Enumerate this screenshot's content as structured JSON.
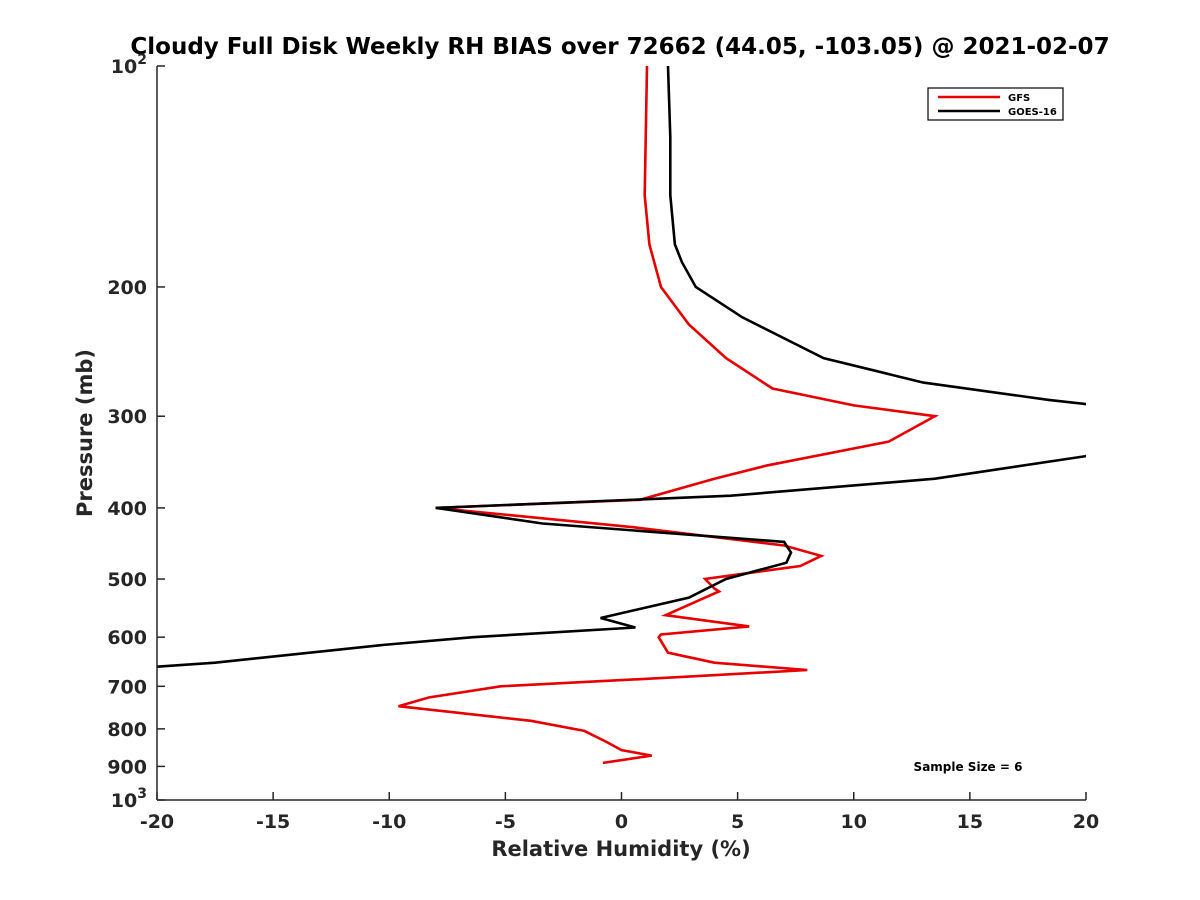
{
  "chart_data": {
    "type": "line",
    "title": "Cloudy Full Disk Weekly RH BIAS over 72662 (44.05, -103.05) @ 2021-02-07",
    "xlabel": "Relative Humidity (%)",
    "ylabel": "Pressure (mb)",
    "xlim": [
      -20,
      20
    ],
    "ylim": [
      100,
      1000
    ],
    "y_scale": "log",
    "y_reversed": true,
    "grid": false,
    "legend_position": "top-right",
    "x_ticks": [
      "-20",
      "-15",
      "-10",
      "-5",
      "0",
      "5",
      "10",
      "15",
      "20"
    ],
    "y_ticks": [
      {
        "value": 100,
        "base": "10",
        "exp": "2"
      },
      {
        "value": 200,
        "label": "200"
      },
      {
        "value": 300,
        "label": "300"
      },
      {
        "value": 400,
        "label": "400"
      },
      {
        "value": 500,
        "label": "500"
      },
      {
        "value": 600,
        "label": "600"
      },
      {
        "value": 700,
        "label": "700"
      },
      {
        "value": 800,
        "label": "800"
      },
      {
        "value": 900,
        "label": "900"
      },
      {
        "value": 1000,
        "base": "10",
        "exp": "3"
      }
    ],
    "series": [
      {
        "name": "GFS",
        "color": "#e60000",
        "points": [
          [
            1.1,
            100
          ],
          [
            1.0,
            150
          ],
          [
            1.2,
            175
          ],
          [
            1.7,
            200
          ],
          [
            2.9,
            225
          ],
          [
            4.5,
            250
          ],
          [
            6.5,
            275
          ],
          [
            10.0,
            290
          ],
          [
            13.5,
            300
          ],
          [
            11.5,
            325
          ],
          [
            6.3,
            350
          ],
          [
            4.0,
            365
          ],
          [
            0.8,
            390
          ],
          [
            -8.0,
            400
          ],
          [
            0.5,
            425
          ],
          [
            7.0,
            450
          ],
          [
            8.6,
            465
          ],
          [
            7.7,
            480
          ],
          [
            3.6,
            500
          ],
          [
            4.0,
            515
          ],
          [
            4.2,
            520
          ],
          [
            3.6,
            530
          ],
          [
            1.9,
            560
          ],
          [
            5.5,
            580
          ],
          [
            1.7,
            595
          ],
          [
            1.6,
            600
          ],
          [
            2.0,
            630
          ],
          [
            4.0,
            650
          ],
          [
            8.0,
            665
          ],
          [
            2.5,
            680
          ],
          [
            -5.2,
            700
          ],
          [
            -8.3,
            725
          ],
          [
            -9.6,
            745
          ],
          [
            -3.9,
            780
          ],
          [
            -1.6,
            805
          ],
          [
            -0.6,
            835
          ],
          [
            0.0,
            855
          ],
          [
            1.3,
            870
          ],
          [
            -0.8,
            890
          ]
        ]
      },
      {
        "name": "GOES-16",
        "color": "#000000",
        "points": [
          [
            2.0,
            100
          ],
          [
            2.1,
            125
          ],
          [
            2.1,
            150
          ],
          [
            2.3,
            175
          ],
          [
            2.6,
            185
          ],
          [
            3.2,
            200
          ],
          [
            5.2,
            220
          ],
          [
            8.7,
            250
          ],
          [
            13.0,
            270
          ],
          [
            18.4,
            285
          ],
          [
            20.5,
            290
          ],
          [
            20.5,
            330
          ],
          [
            20.0,
            340
          ],
          [
            13.5,
            365
          ],
          [
            4.7,
            385
          ],
          [
            -8.0,
            400
          ],
          [
            -3.4,
            420
          ],
          [
            7.0,
            445
          ],
          [
            7.3,
            460
          ],
          [
            7.1,
            475
          ],
          [
            4.5,
            500
          ],
          [
            2.9,
            530
          ],
          [
            -0.9,
            565
          ],
          [
            0.6,
            582
          ],
          [
            -6.4,
            600
          ],
          [
            -10.3,
            615
          ],
          [
            -17.5,
            650
          ],
          [
            -20.5,
            660
          ]
        ]
      }
    ],
    "annotations": [
      "Sample Size = 6"
    ]
  }
}
